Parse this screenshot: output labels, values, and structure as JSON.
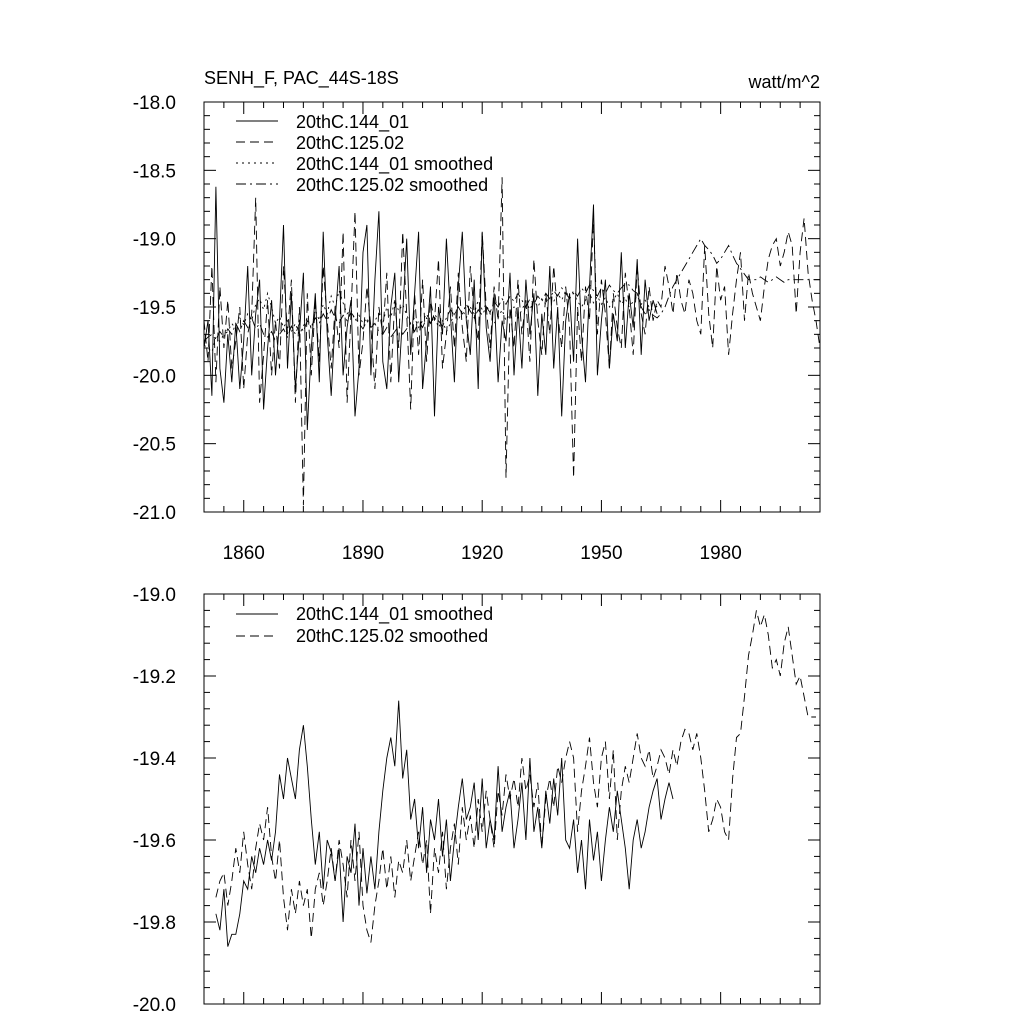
{
  "header": {
    "title": "SENH_F, PAC_44S-18S",
    "units": "watt/m^2"
  },
  "chart_data": [
    {
      "type": "line",
      "panel": "top",
      "title": "SENH_F, PAC_44S-18S",
      "units_label": "watt/m^2",
      "xlabel": "",
      "ylabel": "",
      "xlim": [
        1850,
        2005
      ],
      "ylim": [
        -21.0,
        -18.0
      ],
      "x_ticks": [
        1860,
        1890,
        1920,
        1950,
        1980
      ],
      "x_tick_labels": [
        "1860",
        "1890",
        "1920",
        "1950",
        "1980"
      ],
      "y_ticks": [
        -21.0,
        -20.5,
        -20.0,
        -19.5,
        -19.0,
        -18.5,
        -18.0
      ],
      "y_tick_labels": [
        "-21.0",
        "-20.5",
        "-20.0",
        "-19.5",
        "-19.0",
        "-18.5",
        "-18.0"
      ],
      "legend_position": "top-left",
      "series": [
        {
          "name": "20thC.144_01",
          "style": "solid",
          "x_start": 1850,
          "x_step": 1,
          "values": [
            -19.8,
            -19.6,
            -20.15,
            -18.62,
            -19.95,
            -20.2,
            -19.7,
            -20.05,
            -19.62,
            -20.1,
            -19.75,
            -19.2,
            -20.0,
            -19.55,
            -19.3,
            -20.25,
            -19.8,
            -19.45,
            -20.0,
            -19.6,
            -18.9,
            -19.95,
            -19.4,
            -20.1,
            -19.7,
            -19.25,
            -20.4,
            -19.8,
            -19.4,
            -20.05,
            -18.95,
            -19.7,
            -20.15,
            -19.6,
            -19.2,
            -20.0,
            -19.65,
            -19.45,
            -20.3,
            -19.95,
            -19.1,
            -18.9,
            -20.0,
            -19.3,
            -18.8,
            -19.9,
            -20.1,
            -19.5,
            -19.25,
            -20.05,
            -19.55,
            -19.0,
            -19.85,
            -19.4,
            -18.95,
            -20.1,
            -19.75,
            -19.35,
            -20.3,
            -19.5,
            -19.7,
            -19.0,
            -19.55,
            -20.05,
            -19.35,
            -18.95,
            -19.6,
            -19.85,
            -19.3,
            -20.1,
            -18.95,
            -19.65,
            -19.9,
            -19.4,
            -20.05,
            -19.6,
            -19.75,
            -19.25,
            -20.0,
            -19.5,
            -19.95,
            -19.3,
            -19.7,
            -19.4,
            -20.15,
            -19.55,
            -19.85,
            -19.2,
            -19.95,
            -19.5,
            -20.3,
            -19.6,
            -19.4,
            -19.9,
            -19.0,
            -19.7,
            -20.05,
            -19.35,
            -18.75,
            -20.0,
            -19.6,
            -19.3,
            -19.95,
            -19.55,
            -19.75,
            -19.1,
            -19.8,
            -19.4,
            -19.65,
            -19.15,
            -19.85,
            -19.3,
            -19.6,
            -19.45,
            -19.55
          ]
        },
        {
          "name": "20thC.125.02",
          "style": "dashed",
          "x_start": 1850,
          "x_step": 1,
          "values": [
            -19.6,
            -19.9,
            -19.2,
            -20.05,
            -19.35,
            -19.8,
            -19.45,
            -19.95,
            -19.75,
            -19.5,
            -20.1,
            -19.7,
            -19.55,
            -18.7,
            -20.2,
            -19.85,
            -19.45,
            -20.0,
            -19.6,
            -19.95,
            -19.2,
            -19.7,
            -19.3,
            -20.2,
            -19.5,
            -20.95,
            -19.4,
            -20.0,
            -19.45,
            -19.9,
            -19.2,
            -19.6,
            -19.95,
            -19.5,
            -19.8,
            -18.95,
            -20.2,
            -19.55,
            -18.8,
            -20.0,
            -19.75,
            -19.35,
            -19.65,
            -20.1,
            -19.5,
            -19.7,
            -19.25,
            -20.05,
            -19.45,
            -19.8,
            -18.95,
            -19.55,
            -20.25,
            -19.4,
            -19.85,
            -19.3,
            -19.9,
            -19.45,
            -19.6,
            -19.15,
            -19.95,
            -19.7,
            -19.35,
            -19.8,
            -19.25,
            -19.65,
            -19.9,
            -19.2,
            -19.55,
            -19.75,
            -18.95,
            -19.5,
            -19.8,
            -19.35,
            -19.6,
            -18.55,
            -20.75,
            -19.5,
            -19.8,
            -19.3,
            -19.7,
            -19.45,
            -19.9,
            -19.15,
            -19.6,
            -19.85,
            -19.4,
            -19.7,
            -19.2,
            -19.55,
            -19.8,
            -19.35,
            -19.65,
            -20.75,
            -19.5,
            -19.9,
            -19.35,
            -19.6,
            -18.85,
            -19.7,
            -19.3,
            -19.55,
            -19.95,
            -19.4,
            -19.65,
            -19.8,
            -19.25,
            -19.5,
            -19.85,
            -19.2,
            -19.55,
            -19.7,
            -19.35,
            -19.6,
            -19.45,
            -19.5,
            -19.2,
            -19.35,
            -19.55,
            -19.25,
            -19.45,
            -19.55,
            -19.3,
            -19.4,
            -19.6,
            -19.7,
            -19.05,
            -19.55,
            -19.8,
            -19.2,
            -19.45,
            -19.35,
            -19.85,
            -19.55,
            -19.3,
            -19.1,
            -19.6,
            -19.25,
            -19.4,
            -19.5,
            -19.6,
            -19.35,
            -19.15,
            -19.05,
            -19.0,
            -19.2,
            -19.1,
            -18.95,
            -19.05,
            -19.55,
            -19.1,
            -18.85,
            -19.25,
            -19.45,
            -19.6,
            -19.8
          ]
        },
        {
          "name": "20thC.144_01 smoothed",
          "style": "dotted",
          "x_start": 1850,
          "x_step": 1,
          "values": [
            -19.78,
            -19.8,
            -19.83,
            -19.72,
            -19.75,
            -19.7,
            -19.68,
            -19.62,
            -19.66,
            -19.58,
            -19.63,
            -19.55,
            -19.6,
            -19.48,
            -19.44,
            -19.52,
            -19.4,
            -19.5,
            -19.62,
            -19.57,
            -19.65,
            -19.6,
            -19.68,
            -19.62,
            -19.7,
            -19.64,
            -19.58,
            -19.66,
            -19.52,
            -19.6,
            -19.48,
            -19.55,
            -19.42,
            -19.5,
            -19.38,
            -19.47,
            -19.55,
            -19.52,
            -19.6,
            -19.56,
            -19.62,
            -19.58,
            -19.65,
            -19.6,
            -19.55,
            -19.62,
            -19.5,
            -19.58,
            -19.45,
            -19.53,
            -19.48,
            -19.56,
            -19.62,
            -19.58,
            -19.65,
            -19.6,
            -19.55,
            -19.62,
            -19.57,
            -19.65,
            -19.6,
            -19.68,
            -19.62,
            -19.55,
            -19.6,
            -19.52,
            -19.58,
            -19.5,
            -19.55,
            -19.45,
            -19.52,
            -19.48,
            -19.55,
            -19.62,
            -19.58,
            -19.52,
            -19.6,
            -19.55,
            -19.5,
            -19.58,
            -19.52,
            -19.46,
            -19.52,
            -19.45,
            -19.5,
            -19.44,
            -19.48,
            -19.42,
            -19.46,
            -19.4,
            -19.45,
            -19.38,
            -19.44,
            -19.4,
            -19.46,
            -19.5,
            -19.45,
            -19.4,
            -19.47,
            -19.42,
            -19.48,
            -19.43,
            -19.5,
            -19.45,
            -19.4,
            -19.48,
            -19.44,
            -19.5,
            -19.46,
            -19.42,
            -19.48,
            -19.45,
            -19.5,
            -19.47,
            -19.5
          ]
        },
        {
          "name": "20thC.125.02 smoothed",
          "style": "dash-dot",
          "x_start": 1850,
          "x_step": 1,
          "values": [
            -19.75,
            -19.72,
            -19.7,
            -19.74,
            -19.68,
            -19.72,
            -19.66,
            -19.7,
            -19.62,
            -19.68,
            -19.6,
            -19.65,
            -19.58,
            -19.66,
            -19.62,
            -19.7,
            -19.72,
            -19.68,
            -19.75,
            -19.7,
            -19.66,
            -19.72,
            -19.64,
            -19.7,
            -19.62,
            -19.68,
            -19.6,
            -19.65,
            -19.58,
            -19.62,
            -19.55,
            -19.6,
            -19.52,
            -19.58,
            -19.62,
            -19.56,
            -19.6,
            -19.54,
            -19.58,
            -19.62,
            -19.66,
            -19.6,
            -19.65,
            -19.62,
            -19.68,
            -19.7,
            -19.65,
            -19.72,
            -19.68,
            -19.64,
            -19.7,
            -19.66,
            -19.62,
            -19.68,
            -19.6,
            -19.65,
            -19.58,
            -19.62,
            -19.55,
            -19.6,
            -19.64,
            -19.58,
            -19.52,
            -19.56,
            -19.5,
            -19.55,
            -19.48,
            -19.53,
            -19.58,
            -19.52,
            -19.56,
            -19.5,
            -19.54,
            -19.46,
            -19.5,
            -19.44,
            -19.48,
            -19.42,
            -19.46,
            -19.4,
            -19.45,
            -19.5,
            -19.44,
            -19.48,
            -19.42,
            -19.46,
            -19.4,
            -19.44,
            -19.38,
            -19.42,
            -19.36,
            -19.4,
            -19.44,
            -19.38,
            -19.42,
            -19.36,
            -19.4,
            -19.34,
            -19.38,
            -19.42,
            -19.36,
            -19.4,
            -19.34,
            -19.38,
            -19.4,
            -19.36,
            -19.33,
            -19.34,
            -19.38,
            -19.4,
            -19.5,
            -19.55,
            -19.52,
            -19.56,
            -19.58,
            -19.55,
            -19.5,
            -19.42,
            -19.35,
            -19.3,
            -19.25,
            -19.2,
            -19.15,
            -19.1,
            -19.05,
            -19.0,
            -19.05,
            -19.08,
            -19.12,
            -19.18,
            -19.15,
            -19.1,
            -19.05,
            -19.12,
            -19.18,
            -19.22,
            -19.26,
            -19.3,
            -19.3,
            -19.3,
            -19.28,
            -19.3,
            -19.32,
            -19.3,
            -19.28,
            -19.3,
            -19.32,
            -19.3,
            -19.3,
            -19.3,
            -19.3,
            -19.3,
            -19.3,
            -19.3,
            -19.3,
            -19.3
          ]
        }
      ]
    },
    {
      "type": "line",
      "panel": "bottom",
      "title": "",
      "xlabel": "",
      "ylabel": "",
      "xlim": [
        1850,
        2005
      ],
      "ylim": [
        -20.0,
        -19.0
      ],
      "x_ticks": [
        1860,
        1890,
        1920,
        1950,
        1980
      ],
      "x_tick_labels": [],
      "y_ticks": [
        -20.0,
        -19.8,
        -19.6,
        -19.4,
        -19.2,
        -19.0
      ],
      "y_tick_labels": [
        "-20.0",
        "-19.8",
        "-19.6",
        "-19.4",
        "-19.2",
        "-19.0"
      ],
      "legend_position": "top-left",
      "series": [
        {
          "name": "20thC.144_01 smoothed",
          "style": "solid",
          "x_start": 1853,
          "x_step": 1,
          "values": [
            -19.78,
            -19.82,
            -19.72,
            -19.86,
            -19.83,
            -19.83,
            -19.78,
            -19.7,
            -19.72,
            -19.64,
            -19.68,
            -19.62,
            -19.66,
            -19.6,
            -19.65,
            -19.58,
            -19.44,
            -19.5,
            -19.4,
            -19.45,
            -19.5,
            -19.38,
            -19.32,
            -19.42,
            -19.55,
            -19.66,
            -19.58,
            -19.72,
            -19.6,
            -19.63,
            -19.7,
            -19.62,
            -19.8,
            -19.64,
            -19.68,
            -19.56,
            -19.76,
            -19.62,
            -19.73,
            -19.64,
            -19.72,
            -19.58,
            -19.48,
            -19.4,
            -19.35,
            -19.42,
            -19.26,
            -19.45,
            -19.38,
            -19.55,
            -19.5,
            -19.62,
            -19.52,
            -19.68,
            -19.55,
            -19.6,
            -19.5,
            -19.64,
            -19.55,
            -19.7,
            -19.6,
            -19.52,
            -19.45,
            -19.55,
            -19.52,
            -19.46,
            -19.6,
            -19.45,
            -19.62,
            -19.55,
            -19.6,
            -19.42,
            -19.58,
            -19.52,
            -19.48,
            -19.62,
            -19.55,
            -19.46,
            -19.6,
            -19.4,
            -19.58,
            -19.52,
            -19.62,
            -19.48,
            -19.56,
            -19.45,
            -19.54,
            -19.4,
            -19.6,
            -19.62,
            -19.55,
            -19.68,
            -19.6,
            -19.72,
            -19.55,
            -19.65,
            -19.58,
            -19.7,
            -19.6,
            -19.52,
            -19.58,
            -19.48,
            -19.55,
            -19.62,
            -19.72,
            -19.6,
            -19.55,
            -19.62,
            -19.58,
            -19.52,
            -19.48,
            -19.45,
            -19.55,
            -19.5,
            -19.46,
            -19.5
          ]
        },
        {
          "name": "20thC.125.02 smoothed",
          "style": "dashed",
          "x_start": 1853,
          "x_step": 1,
          "values": [
            -19.74,
            -19.7,
            -19.68,
            -19.76,
            -19.7,
            -19.62,
            -19.68,
            -19.58,
            -19.66,
            -19.72,
            -19.62,
            -19.56,
            -19.6,
            -19.52,
            -19.64,
            -19.7,
            -19.6,
            -19.74,
            -19.82,
            -19.72,
            -19.78,
            -19.7,
            -19.76,
            -19.72,
            -19.84,
            -19.72,
            -19.68,
            -19.76,
            -19.7,
            -19.62,
            -19.7,
            -19.6,
            -19.66,
            -19.74,
            -19.6,
            -19.7,
            -19.58,
            -19.76,
            -19.82,
            -19.85,
            -19.76,
            -19.7,
            -19.62,
            -19.72,
            -19.64,
            -19.74,
            -19.65,
            -19.68,
            -19.6,
            -19.7,
            -19.64,
            -19.58,
            -19.66,
            -19.6,
            -19.78,
            -19.62,
            -19.68,
            -19.58,
            -19.72,
            -19.62,
            -19.56,
            -19.66,
            -19.52,
            -19.6,
            -19.54,
            -19.62,
            -19.5,
            -19.58,
            -19.48,
            -19.55,
            -19.62,
            -19.48,
            -19.54,
            -19.44,
            -19.5,
            -19.45,
            -19.52,
            -19.4,
            -19.48,
            -19.44,
            -19.52,
            -19.46,
            -19.62,
            -19.5,
            -19.45,
            -19.52,
            -19.42,
            -19.46,
            -19.4,
            -19.36,
            -19.4,
            -19.58,
            -19.48,
            -19.42,
            -19.35,
            -19.46,
            -19.52,
            -19.4,
            -19.36,
            -19.5,
            -19.38,
            -19.6,
            -19.48,
            -19.42,
            -19.46,
            -19.4,
            -19.34,
            -19.4,
            -19.42,
            -19.38,
            -19.45,
            -19.42,
            -19.38,
            -19.4,
            -19.44,
            -19.38,
            -19.42,
            -19.36,
            -19.33,
            -19.34,
            -19.38,
            -19.34,
            -19.4,
            -19.48,
            -19.58,
            -19.55,
            -19.5,
            -19.52,
            -19.58,
            -19.6,
            -19.45,
            -19.35,
            -19.34,
            -19.25,
            -19.15,
            -19.1,
            -19.04,
            -19.08,
            -19.05,
            -19.1,
            -19.18,
            -19.16,
            -19.2,
            -19.12,
            -19.08,
            -19.15,
            -19.22,
            -19.2,
            -19.25,
            -19.3,
            -19.3,
            -19.3
          ]
        }
      ]
    }
  ]
}
